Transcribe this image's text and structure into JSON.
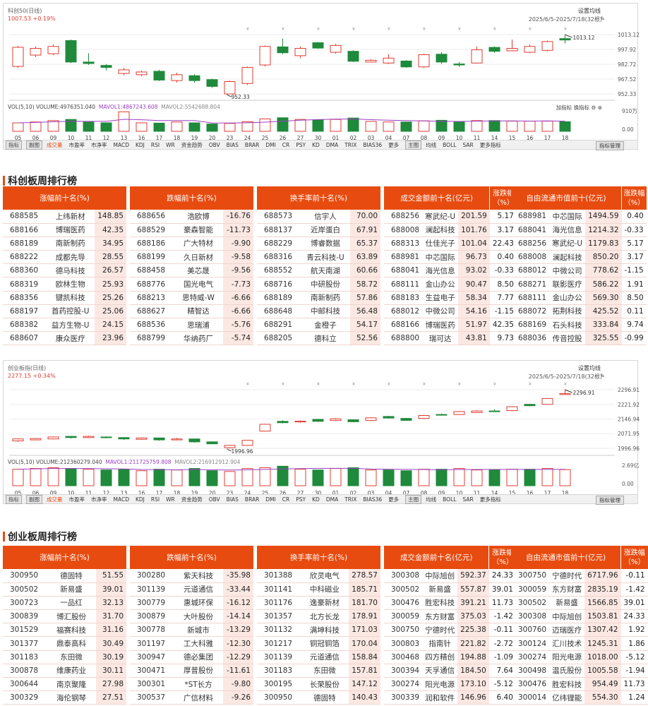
{
  "kc_chart": {
    "title": "科创50(日线)",
    "price_line": "1007.53 +0.19%",
    "settings": "设置均线",
    "date_range": "2025/6/5-2025/7/18(32根)",
    "y_ticks": [
      "1013.12",
      "997.92",
      "982.72",
      "967.52",
      "952.33"
    ],
    "high_label": "1013.12",
    "low_label": "952.33",
    "vol_legend": "VOL(5,10) VOLUME:4976351.040",
    "vol_ma1": "MAVOL1:4867243.608",
    "vol_ma2": "MAVOL2:5542688.804",
    "vol_ticks": [
      "910万",
      "0.00"
    ],
    "add_indicator": "加指标",
    "change_indicator": "换指标",
    "x_labels": [
      "05",
      "06",
      "09",
      "10",
      "11",
      "12",
      "13",
      "16",
      "17",
      "18",
      "19",
      "20",
      "23",
      "24",
      "25",
      "26",
      "27",
      "30",
      "01",
      "02",
      "03",
      "04",
      "07",
      "08",
      "09",
      "10",
      "11",
      "14",
      "15",
      "16",
      "17",
      "18"
    ],
    "candles": [
      {
        "o": 980.5,
        "c": 1000.1,
        "h": 1001.5,
        "l": 979.0,
        "v": 300
      },
      {
        "o": 992.1,
        "c": 999.0,
        "h": 1001.0,
        "l": 990.0,
        "v": 330
      },
      {
        "o": 993.5,
        "c": 1001.0,
        "h": 1003.0,
        "l": 992.0,
        "v": 380
      },
      {
        "o": 1007.0,
        "c": 985.0,
        "h": 1008.0,
        "l": 984.0,
        "v": 420
      },
      {
        "o": 985.0,
        "c": 983.5,
        "h": 994.0,
        "l": 982.0,
        "v": 330
      },
      {
        "o": 981.5,
        "c": 979.5,
        "h": 983.0,
        "l": 976.5,
        "v": 300
      },
      {
        "o": 973.3,
        "c": 977.0,
        "h": 979.0,
        "l": 971.5,
        "v": 690
      },
      {
        "o": 972.0,
        "c": 974.8,
        "h": 976.0,
        "l": 970.5,
        "v": 300
      },
      {
        "o": 975.5,
        "c": 966.5,
        "h": 977.0,
        "l": 965.5,
        "v": 290
      },
      {
        "o": 966.0,
        "c": 972.0,
        "h": 974.0,
        "l": 964.0,
        "v": 330
      },
      {
        "o": 971.0,
        "c": 966.0,
        "h": 972.5,
        "l": 964.0,
        "v": 300
      },
      {
        "o": 967.0,
        "c": 960.0,
        "h": 968.0,
        "l": 958.5,
        "v": 260
      },
      {
        "o": 952.3,
        "c": 965.0,
        "h": 966.0,
        "l": 952.3,
        "v": 280
      },
      {
        "o": 963.0,
        "c": 979.5,
        "h": 980.5,
        "l": 961.5,
        "v": 340
      },
      {
        "o": 982.0,
        "c": 1001.0,
        "h": 1002.0,
        "l": 980.5,
        "v": 440
      },
      {
        "o": 1000.5,
        "c": 994.5,
        "h": 1009.0,
        "l": 993.0,
        "v": 480
      },
      {
        "o": 991.5,
        "c": 999.0,
        "h": 1001.0,
        "l": 989.0,
        "v": 420
      },
      {
        "o": 1004.8,
        "c": 999.3,
        "h": 1005.5,
        "l": 998.5,
        "v": 400
      },
      {
        "o": 995.0,
        "c": 1002.0,
        "h": 1003.5,
        "l": 993.5,
        "v": 420
      },
      {
        "o": 996.0,
        "c": 985.8,
        "h": 997.0,
        "l": 985.0,
        "v": 470
      },
      {
        "o": 985.0,
        "c": 986.8,
        "h": 988.0,
        "l": 984.5,
        "v": 350
      },
      {
        "o": 984.0,
        "c": 989.0,
        "h": 993.0,
        "l": 983.0,
        "v": 330
      },
      {
        "o": 986.0,
        "c": 980.0,
        "h": 987.0,
        "l": 979.0,
        "v": 330
      },
      {
        "o": 980.0,
        "c": 992.5,
        "h": 993.5,
        "l": 979.0,
        "v": 370
      },
      {
        "o": 993.0,
        "c": 985.0,
        "h": 995.0,
        "l": 983.0,
        "v": 390
      },
      {
        "o": 983.0,
        "c": 982.0,
        "h": 985.0,
        "l": 980.0,
        "v": 330
      },
      {
        "o": 984.0,
        "c": 997.5,
        "h": 1001.0,
        "l": 983.5,
        "v": 380
      },
      {
        "o": 1000.0,
        "c": 996.0,
        "h": 1001.0,
        "l": 994.5,
        "v": 380
      },
      {
        "o": 996.5,
        "c": 999.0,
        "h": 1008.0,
        "l": 996.0,
        "v": 360
      },
      {
        "o": 995.0,
        "c": 1001.0,
        "h": 1003.0,
        "l": 994.0,
        "v": 360
      },
      {
        "o": 997.0,
        "c": 1006.0,
        "h": 1007.0,
        "l": 996.0,
        "v": 360
      },
      {
        "o": 1009.0,
        "c": 1007.6,
        "h": 1013.1,
        "l": 1004.0,
        "v": 340
      }
    ],
    "indicator_tabs": [
      "指标",
      "副图",
      "成交量",
      "市盈率",
      "市净率",
      "MACD",
      "KDJ",
      "RSI",
      "WR",
      "资金趋势",
      "OBV",
      "BIAS",
      "BRAR",
      "DMI",
      "CR",
      "PSY",
      "KD",
      "DMA",
      "TRIX",
      "BIAS36",
      "更多",
      "主图",
      "均线",
      "BOLL",
      "SAR",
      "更多指标"
    ],
    "manage": "指标管理"
  },
  "cy_chart": {
    "title": "创业板指(日线)",
    "price_line": "2277.15 +0.34%",
    "settings": "设置均线",
    "date_range": "2025/6/5-2025/7/18(32根)",
    "y_ticks": [
      "2296.91",
      "2221.92",
      "2146.94",
      "2071.95",
      "1996.96"
    ],
    "high_label": "2296.91",
    "low_label": "1996.96",
    "vol_legend": "VOL(5,10) VOLUME:212360279.040",
    "vol_ma1": "MAVOL1:211725759.808",
    "vol_ma2": "MAVOL2:216912912.904",
    "vol_ticks": [
      "2.69亿",
      "0.00"
    ],
    "add_indicator": "加指标",
    "change_indicator": "换指标",
    "x_labels": [
      "05",
      "06",
      "09",
      "10",
      "11",
      "12",
      "13",
      "16",
      "17",
      "18",
      "19",
      "20",
      "23",
      "24",
      "25",
      "26",
      "27",
      "30",
      "01",
      "02",
      "03",
      "04",
      "07",
      "08",
      "09",
      "10",
      "11",
      "14",
      "15",
      "16",
      "17",
      "18"
    ],
    "candles": [
      {
        "o": 2035.0,
        "c": 2045.0,
        "h": 2048.0,
        "l": 2030.0,
        "v": 220
      },
      {
        "o": 2040.0,
        "c": 2047.0,
        "h": 2050.0,
        "l": 2038.0,
        "v": 230
      },
      {
        "o": 2045.0,
        "c": 2055.0,
        "h": 2058.0,
        "l": 2043.0,
        "v": 240
      },
      {
        "o": 2058.0,
        "c": 2052.0,
        "h": 2060.0,
        "l": 2048.0,
        "v": 230
      },
      {
        "o": 2052.0,
        "c": 2058.0,
        "h": 2062.0,
        "l": 2050.0,
        "v": 220
      },
      {
        "o": 2055.0,
        "c": 2052.0,
        "h": 2058.0,
        "l": 2048.0,
        "v": 210
      },
      {
        "o": 2052.0,
        "c": 2045.0,
        "h": 2054.0,
        "l": 2040.0,
        "v": 220
      },
      {
        "o": 2043.0,
        "c": 2050.0,
        "h": 2053.0,
        "l": 2040.0,
        "v": 200
      },
      {
        "o": 2050.0,
        "c": 2040.0,
        "h": 2051.0,
        "l": 2036.0,
        "v": 220
      },
      {
        "o": 2040.0,
        "c": 2045.0,
        "h": 2050.0,
        "l": 2038.0,
        "v": 210
      },
      {
        "o": 2045.0,
        "c": 2030.0,
        "h": 2046.0,
        "l": 2026.0,
        "v": 230
      },
      {
        "o": 2030.0,
        "c": 2020.0,
        "h": 2032.0,
        "l": 2018.0,
        "v": 200
      },
      {
        "o": 2000.0,
        "c": 2012.0,
        "h": 2014.0,
        "l": 1997.0,
        "v": 190
      },
      {
        "o": 2012.0,
        "c": 2038.0,
        "h": 2040.0,
        "l": 2010.0,
        "v": 230
      },
      {
        "o": 2085.0,
        "c": 2120.0,
        "h": 2122.0,
        "l": 2083.0,
        "v": 240
      },
      {
        "o": 2135.0,
        "c": 2128.0,
        "h": 2140.0,
        "l": 2125.0,
        "v": 260
      },
      {
        "o": 2132.0,
        "c": 2136.0,
        "h": 2140.0,
        "l": 2128.0,
        "v": 220
      },
      {
        "o": 2145.0,
        "c": 2135.0,
        "h": 2148.0,
        "l": 2132.0,
        "v": 210
      },
      {
        "o": 2140.0,
        "c": 2148.0,
        "h": 2152.0,
        "l": 2137.0,
        "v": 230
      },
      {
        "o": 2143.0,
        "c": 2133.0,
        "h": 2145.0,
        "l": 2130.0,
        "v": 240
      },
      {
        "o": 2140.0,
        "c": 2153.0,
        "h": 2155.0,
        "l": 2137.0,
        "v": 210
      },
      {
        "o": 2160.0,
        "c": 2152.0,
        "h": 2163.0,
        "l": 2150.0,
        "v": 210
      },
      {
        "o": 2150.0,
        "c": 2140.0,
        "h": 2153.0,
        "l": 2138.0,
        "v": 200
      },
      {
        "o": 2150.0,
        "c": 2165.0,
        "h": 2168.0,
        "l": 2148.0,
        "v": 220
      },
      {
        "o": 2170.0,
        "c": 2168.0,
        "h": 2175.0,
        "l": 2166.0,
        "v": 220
      },
      {
        "o": 2170.0,
        "c": 2185.0,
        "h": 2187.0,
        "l": 2168.0,
        "v": 230
      },
      {
        "o": 2180.0,
        "c": 2188.0,
        "h": 2192.0,
        "l": 2178.0,
        "v": 210
      },
      {
        "o": 2188.0,
        "c": 2185.0,
        "h": 2196.0,
        "l": 2183.0,
        "v": 210
      },
      {
        "o": 2190.0,
        "c": 2210.0,
        "h": 2213.0,
        "l": 2188.0,
        "v": 220
      },
      {
        "o": 2222.0,
        "c": 2215.0,
        "h": 2225.0,
        "l": 2212.0,
        "v": 220
      },
      {
        "o": 2222.0,
        "c": 2252.0,
        "h": 2255.0,
        "l": 2220.0,
        "v": 230
      },
      {
        "o": 2272.0,
        "c": 2277.0,
        "h": 2297.0,
        "l": 2270.0,
        "v": 215
      }
    ],
    "indicator_tabs": [
      "指标",
      "副图",
      "成交量",
      "市盈率",
      "市净率",
      "MACD",
      "KDJ",
      "RSI",
      "WR",
      "资金趋势",
      "OBV",
      "BIAS",
      "BRAR",
      "DMI",
      "CR",
      "PSY",
      "KD",
      "DMA",
      "TRIX",
      "BIAS36",
      "更多",
      "主图",
      "均线",
      "BOLL",
      "SAR",
      "更多指标"
    ],
    "manage": "指标管理"
  },
  "kc_section": {
    "title": "科创板周排行榜",
    "headers": {
      "gain": "涨幅前十名(%)",
      "loss": "跌幅前十名(%)",
      "turnover": "换手率前十名(%)",
      "amount": "成交金额前十名(亿元)",
      "amount_pct": "涨跌幅（%）",
      "mcap": "自由流通市值前十(亿元)",
      "mcap_pct": "涨跌幅（%）"
    },
    "gain": [
      [
        "688585",
        "上纬新材",
        "148.85"
      ],
      [
        "688166",
        "博瑞医药",
        "42.35"
      ],
      [
        "688189",
        "南新制药",
        "34.95"
      ],
      [
        "688222",
        "成都先导",
        "28.55"
      ],
      [
        "688360",
        "德马科技",
        "26.57"
      ],
      [
        "688319",
        "欧林生物",
        "25.93"
      ],
      [
        "688356",
        "键凯科技",
        "25.26"
      ],
      [
        "688197",
        "首药控股-U",
        "25.06"
      ],
      [
        "688382",
        "益方生物-U",
        "24.15"
      ],
      [
        "688607",
        "康众医疗",
        "23.96"
      ]
    ],
    "loss": [
      [
        "688656",
        "浩欧博",
        "-16.76"
      ],
      [
        "688529",
        "豪森智能",
        "-11.73"
      ],
      [
        "688186",
        "广大特材",
        "-9.90"
      ],
      [
        "688199",
        "久日新材",
        "-9.58"
      ],
      [
        "688458",
        "美芯晟",
        "-9.56"
      ],
      [
        "688776",
        "国光电气",
        "-7.73"
      ],
      [
        "688213",
        "思特威-W",
        "-6.66"
      ],
      [
        "688627",
        "精智达",
        "-6.66"
      ],
      [
        "688536",
        "思瑞浦",
        "-5.76"
      ],
      [
        "688799",
        "华纳药厂",
        "-5.74"
      ]
    ],
    "turnover": [
      [
        "688573",
        "信宇人",
        "70.00"
      ],
      [
        "688137",
        "近岸蛋白",
        "67.91"
      ],
      [
        "688229",
        "博睿数据",
        "65.37"
      ],
      [
        "688316",
        "青云科技-U",
        "63.89"
      ],
      [
        "688552",
        "航天南湖",
        "60.66"
      ],
      [
        "688716",
        "中研股份",
        "58.72"
      ],
      [
        "688189",
        "南新制药",
        "57.86"
      ],
      [
        "688648",
        "中邮科技",
        "56.48"
      ],
      [
        "688291",
        "金橙子",
        "54.17"
      ],
      [
        "688205",
        "德科立",
        "52.56"
      ]
    ],
    "amount": [
      [
        "688256",
        "寒武纪-U",
        "201.59",
        "5.17"
      ],
      [
        "688008",
        "澜起科技",
        "101.76",
        "3.17"
      ],
      [
        "688313",
        "仕佳光子",
        "101.04",
        "22.43"
      ],
      [
        "688981",
        "中芯国际",
        "96.73",
        "0.40"
      ],
      [
        "688041",
        "海光信息",
        "93.02",
        "-0.33"
      ],
      [
        "688111",
        "金山办公",
        "90.47",
        "8.50"
      ],
      [
        "688183",
        "生益电子",
        "58.34",
        "7.77"
      ],
      [
        "688012",
        "中微公司",
        "54.16",
        "-1.15"
      ],
      [
        "688166",
        "博瑞医药",
        "51.97",
        "42.35"
      ],
      [
        "688800",
        "瑞可达",
        "43.81",
        "9.73"
      ]
    ],
    "mcap": [
      [
        "688981",
        "中芯国际",
        "1494.59",
        "0.40"
      ],
      [
        "688041",
        "海光信息",
        "1214.32",
        "-0.33"
      ],
      [
        "688256",
        "寒武纪-U",
        "1179.83",
        "5.17"
      ],
      [
        "688008",
        "澜起科技",
        "850.20",
        "3.17"
      ],
      [
        "688012",
        "中微公司",
        "778.62",
        "-1.15"
      ],
      [
        "688271",
        "联影医疗",
        "586.22",
        "1.91"
      ],
      [
        "688111",
        "金山办公",
        "569.30",
        "8.50"
      ],
      [
        "688072",
        "拓荆科技",
        "425.52",
        "0.11"
      ],
      [
        "688169",
        "石头科技",
        "333.84",
        "9.74"
      ],
      [
        "688036",
        "传音控股",
        "325.55",
        "-0.99"
      ]
    ]
  },
  "cy_section": {
    "title": "创业板周排行榜",
    "headers": {
      "gain": "涨幅前十名(%)",
      "loss": "跌幅前十名(%)",
      "turnover": "换手率前十名(%)",
      "amount": "成交金额前十名(亿元)",
      "amount_pct": "涨跌幅（%）",
      "mcap": "自由流通市值前十(亿元)",
      "mcap_pct": "涨跌幅（%）"
    },
    "gain": [
      [
        "300950",
        "德固特",
        "51.55"
      ],
      [
        "300502",
        "新易盛",
        "39.01"
      ],
      [
        "300723",
        "一品红",
        "32.13"
      ],
      [
        "300839",
        "博汇股份",
        "31.70"
      ],
      [
        "301529",
        "福赛科技",
        "31.16"
      ],
      [
        "301377",
        "鼎泰高科",
        "30.49"
      ],
      [
        "301183",
        "东田微",
        "30.19"
      ],
      [
        "300878",
        "维康药业",
        "30.11"
      ],
      [
        "300644",
        "南京聚隆",
        "27.98"
      ],
      [
        "300329",
        "海伦钢琴",
        "27.51"
      ]
    ],
    "loss": [
      [
        "300280",
        "紫天科技",
        "-35.98"
      ],
      [
        "301139",
        "元道通信",
        "-33.44"
      ],
      [
        "300779",
        "惠城环保",
        "-16.12"
      ],
      [
        "300879",
        "大叶股份",
        "-14.14"
      ],
      [
        "300778",
        "新城市",
        "-13.29"
      ],
      [
        "301197",
        "工大科雅",
        "-12.30"
      ],
      [
        "300947",
        "德必集团",
        "-12.29"
      ],
      [
        "300471",
        "厚普股份",
        "-11.61"
      ],
      [
        "300301",
        "*ST长方",
        "-9.80"
      ],
      [
        "300537",
        "广信材料",
        "-9.26"
      ]
    ],
    "turnover": [
      [
        "301388",
        "欣灵电气",
        "278.57"
      ],
      [
        "301141",
        "中科磁业",
        "185.71"
      ],
      [
        "301176",
        "逸豪新材",
        "181.70"
      ],
      [
        "301357",
        "北方长龙",
        "178.91"
      ],
      [
        "301132",
        "满坤科技",
        "171.03"
      ],
      [
        "301217",
        "铜冠铜箔",
        "170.04"
      ],
      [
        "301139",
        "元道通信",
        "158.84"
      ],
      [
        "301183",
        "东田微",
        "157.81"
      ],
      [
        "300195",
        "长荣股份",
        "147.12"
      ],
      [
        "300950",
        "德固特",
        "140.43"
      ]
    ],
    "amount": [
      [
        "300308",
        "中际旭创",
        "592.37",
        "24.33"
      ],
      [
        "300502",
        "新易盛",
        "557.87",
        "39.01"
      ],
      [
        "300476",
        "胜宏科技",
        "391.21",
        "11.73"
      ],
      [
        "300059",
        "东方财富",
        "375.03",
        "-1.42"
      ],
      [
        "300750",
        "宁德时代",
        "225.38",
        "-0.11"
      ],
      [
        "300803",
        "指南针",
        "221.82",
        "-2.72"
      ],
      [
        "300468",
        "四方精创",
        "194.88",
        "-1.09"
      ],
      [
        "300394",
        "天孚通信",
        "184.50",
        "7.64"
      ],
      [
        "300274",
        "阳光电源",
        "173.10",
        "-5.12"
      ],
      [
        "300339",
        "润和软件",
        "146.96",
        "6.40"
      ]
    ],
    "mcap": [
      [
        "300750",
        "宁德时代",
        "6717.96",
        "-0.11"
      ],
      [
        "300059",
        "东方财富",
        "2835.19",
        "-1.42"
      ],
      [
        "300502",
        "新易盛",
        "1566.85",
        "39.01"
      ],
      [
        "300308",
        "中际旭创",
        "1503.81",
        "24.33"
      ],
      [
        "300760",
        "迈瑞医疗",
        "1307.42",
        "1.92"
      ],
      [
        "300124",
        "汇川技术",
        "1245.31",
        "1.86"
      ],
      [
        "300274",
        "阳光电源",
        "1018.00",
        "-5.12"
      ],
      [
        "300498",
        "温氏股份",
        "1005.58",
        "-1.94"
      ],
      [
        "300476",
        "胜宏科技",
        "954.49",
        "11.73"
      ],
      [
        "300014",
        "亿纬锂能",
        "554.30",
        "1.24"
      ]
    ]
  }
}
